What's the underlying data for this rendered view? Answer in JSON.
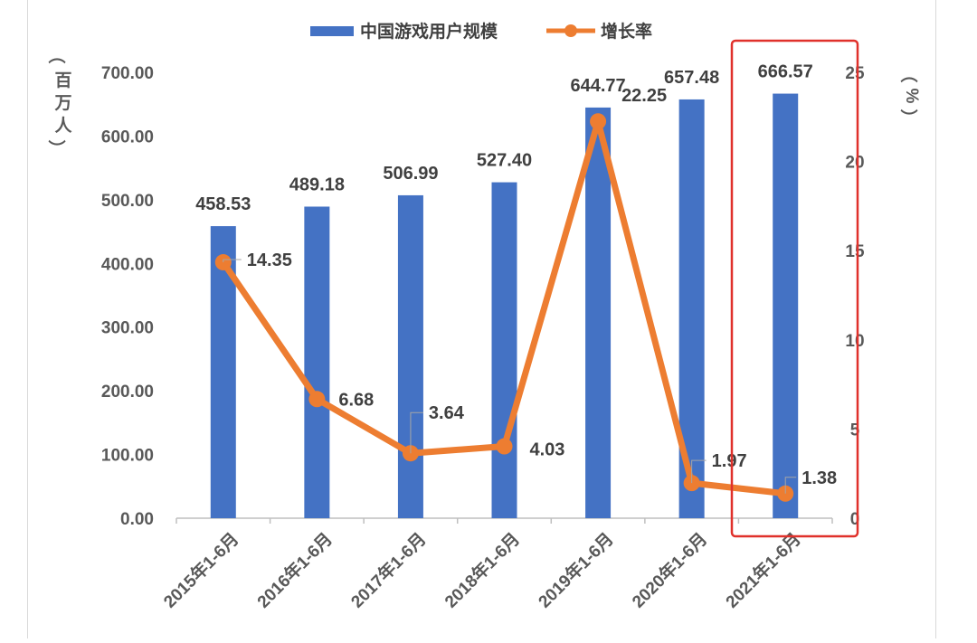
{
  "chart_data": {
    "type": "bar",
    "categories": [
      "2015年1-6月",
      "2016年1-6月",
      "2017年1-6月",
      "2018年1-6月",
      "2019年1-6月",
      "2020年1-6月",
      "2021年1-6月"
    ],
    "series": [
      {
        "name": "中国游戏用户规模",
        "type": "bar",
        "axis": "left",
        "color": "#4472C4",
        "values": [
          458.53,
          489.18,
          506.99,
          527.4,
          644.77,
          657.48,
          666.57
        ],
        "labels": [
          "458.53",
          "489.18",
          "506.99",
          "527.40",
          "644.77",
          "657.48",
          "666.57"
        ]
      },
      {
        "name": "增长率",
        "type": "line",
        "axis": "right",
        "color": "#ED7D31",
        "values": [
          14.35,
          6.68,
          3.64,
          4.03,
          22.25,
          1.97,
          1.38
        ],
        "labels": [
          "14.35",
          "6.68",
          "3.64",
          "4.03",
          "22.25",
          "1.97",
          "1.38"
        ]
      }
    ],
    "y_left": {
      "label": [
        "（",
        "百",
        "万",
        "人",
        "）"
      ],
      "ylim": [
        0,
        700
      ],
      "ticks": [
        "0.00",
        "100.00",
        "200.00",
        "300.00",
        "400.00",
        "500.00",
        "600.00",
        "700.00"
      ]
    },
    "y_right": {
      "label": [
        "（",
        "%",
        "）"
      ],
      "ylim": [
        0,
        25
      ],
      "ticks": [
        "0",
        "5",
        "10",
        "15",
        "20",
        "25"
      ]
    },
    "legend": {
      "position": "top"
    },
    "grid": false,
    "highlight": {
      "category_index": 6,
      "color": "#E0312B"
    }
  }
}
